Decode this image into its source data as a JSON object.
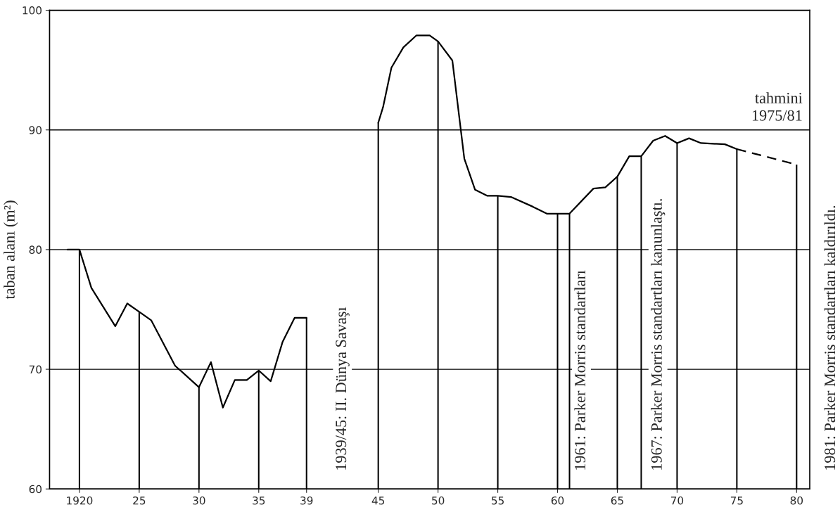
{
  "chart_data": {
    "type": "line",
    "ylabel": "taban alanı (m²)",
    "annotations": [
      "1939/45: II. Dünya Savaşı",
      "1961: Parker Morris standartları",
      "1967: Parker Morris standartları kanunlaştı.",
      "1981: Parker Morris standartları kaldırıldı.",
      "tahmini\n1975/81"
    ],
    "series": [
      {
        "color": "#000000",
        "line_style": "solid",
        "x": [
          1919,
          1920,
          1921,
          1923,
          1924,
          1925,
          1926,
          1928,
          1930,
          1931,
          1932,
          1933,
          1934,
          1935,
          1936,
          1937,
          1938,
          1939,
          1940,
          1945,
          1945.4,
          1946.1,
          1947.1,
          1948.2,
          1949.3,
          1950,
          1951.2,
          1952.2,
          1953.1,
          1954.1,
          1955,
          1956.1,
          1957.9,
          1959.1,
          1960,
          1961,
          1963,
          1964,
          1965,
          1966,
          1967,
          1968,
          1969,
          1970,
          1971,
          1972,
          1974,
          1975
        ],
        "values": [
          80.0,
          80.0,
          76.8,
          73.6,
          75.5,
          74.8,
          74.1,
          70.3,
          68.5,
          70.6,
          66.8,
          69.1,
          69.1,
          69.9,
          69.0,
          72.3,
          74.3,
          74.3,
          null,
          90.6,
          91.9,
          95.2,
          96.9,
          97.9,
          97.9,
          97.4,
          95.8,
          87.6,
          85.0,
          84.5,
          84.5,
          84.4,
          83.6,
          83.0,
          83.0,
          83.0,
          85.1,
          85.2,
          86.1,
          87.8,
          87.8,
          89.1,
          89.5,
          88.9,
          89.3,
          88.9,
          88.8,
          88.4
        ]
      },
      {
        "color": "#000000",
        "line_style": "dashed",
        "x": [
          1975,
          1980
        ],
        "values": [
          88.4,
          87.1
        ]
      },
      {
        "type": "bar",
        "color": "#000000",
        "x": [
          1920,
          1925,
          1930,
          1935,
          1939,
          1945,
          1950,
          1955,
          1960,
          1961,
          1965,
          1967,
          1970,
          1975,
          1980
        ],
        "values": [
          80.0,
          74.8,
          68.5,
          69.9,
          74.3,
          90.6,
          97.4,
          84.5,
          83.0,
          83.0,
          86.1,
          87.8,
          88.9,
          88.4,
          87.1
        ]
      }
    ],
    "xlim": [
      1917.5,
      1981.1
    ],
    "xticks": [
      1920,
      {
        "value": 1925,
        "label": "25"
      },
      {
        "value": 1930,
        "label": "30"
      },
      {
        "value": 1935,
        "label": "35"
      },
      {
        "value": 1939,
        "label": "39"
      },
      {
        "value": 1945,
        "label": "45"
      },
      {
        "value": 1950,
        "label": "50"
      },
      {
        "value": 1955,
        "label": "55"
      },
      {
        "value": 1960,
        "label": "60"
      },
      {
        "value": 1965,
        "label": "65"
      },
      {
        "value": 1970,
        "label": "70"
      },
      {
        "value": 1975,
        "label": "75"
      },
      {
        "value": 1980,
        "label": "80"
      }
    ],
    "ylim": [
      60,
      100
    ],
    "yticks": [
      60,
      70,
      80,
      90,
      100
    ],
    "grid": "y",
    "marker": "none",
    "legend": false
  }
}
